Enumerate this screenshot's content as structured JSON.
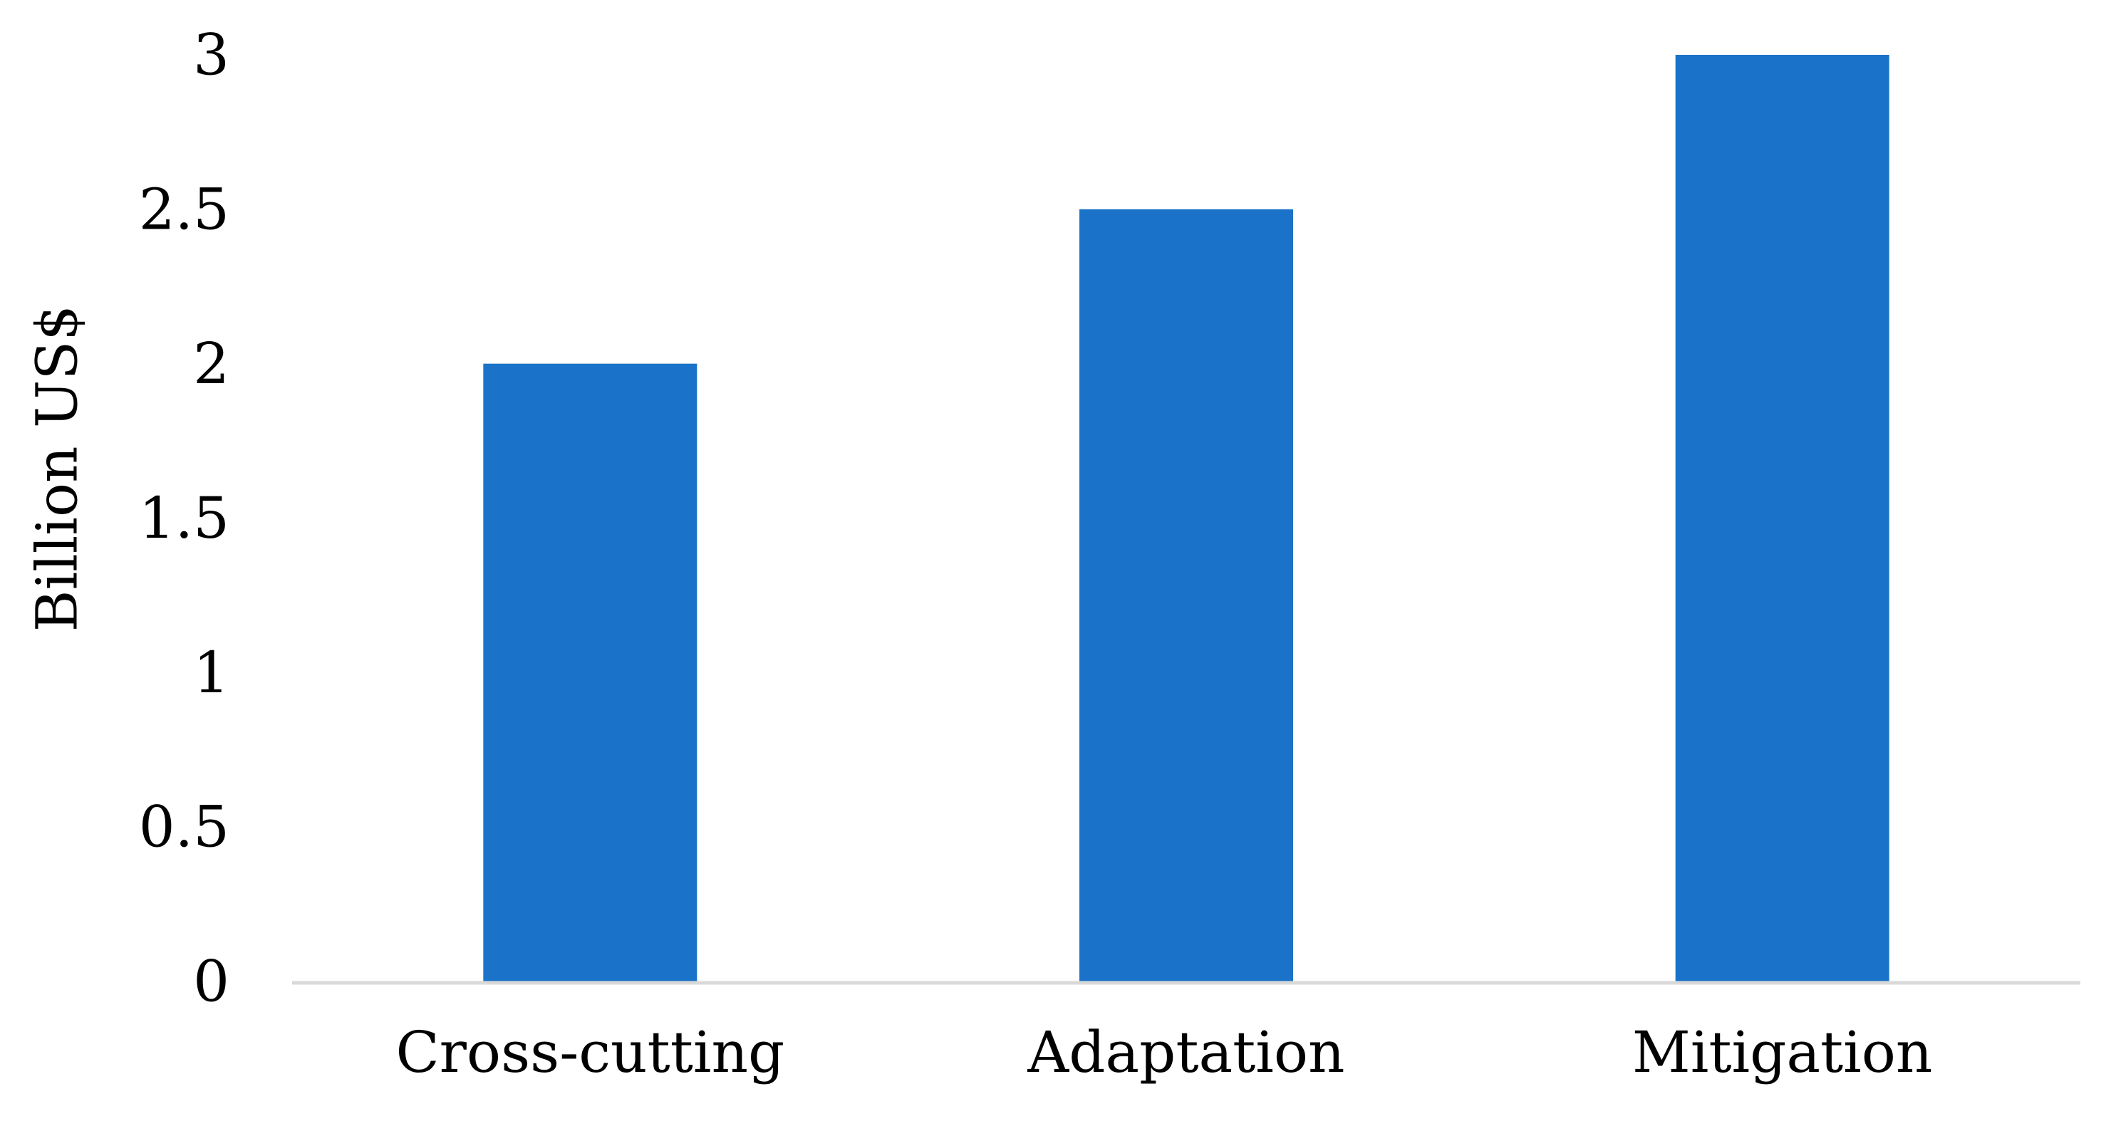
{
  "chart_data": {
    "type": "bar",
    "title": "",
    "xlabel": "",
    "ylabel": "Billion US$",
    "categories": [
      "Cross-cutting",
      "Adaptation",
      "Mitigation"
    ],
    "values": [
      2,
      2.5,
      3
    ],
    "ylim": [
      0,
      3
    ],
    "yticks": [
      "0",
      "0.5",
      "1",
      "1.5",
      "2",
      "2.5",
      "3"
    ],
    "grid": false,
    "legend": "none",
    "bar_color": "#1a73c8",
    "axis_color": "#d9d9d9"
  }
}
